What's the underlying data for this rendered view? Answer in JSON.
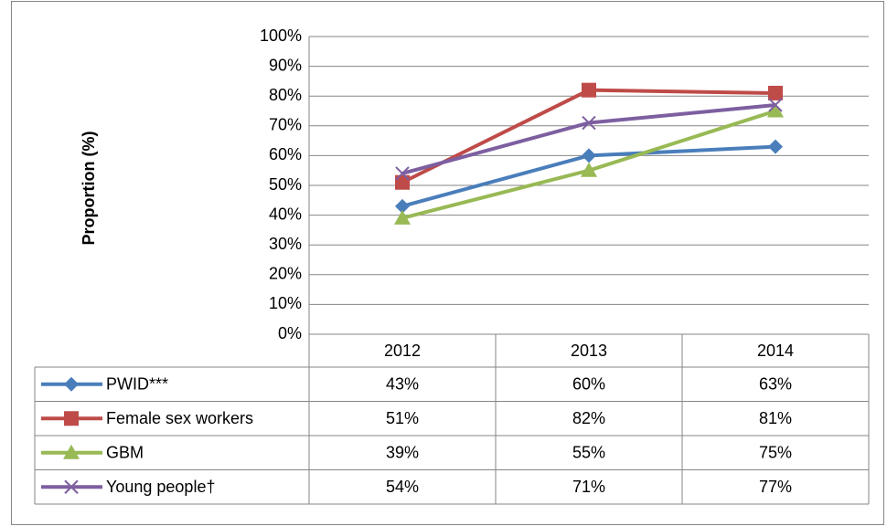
{
  "chart_data": {
    "type": "line",
    "y_label": "Proportion (%)",
    "categories": [
      "2012",
      "2013",
      "2014"
    ],
    "ylim": [
      0,
      100
    ],
    "yticks": [
      {
        "value": 0,
        "label": "0%"
      },
      {
        "value": 10,
        "label": "10%"
      },
      {
        "value": 20,
        "label": "20%"
      },
      {
        "value": 30,
        "label": "30%"
      },
      {
        "value": 40,
        "label": "40%"
      },
      {
        "value": 50,
        "label": "50%"
      },
      {
        "value": 60,
        "label": "60%"
      },
      {
        "value": 70,
        "label": "70%"
      },
      {
        "value": 80,
        "label": "80%"
      },
      {
        "value": 90,
        "label": "90%"
      },
      {
        "value": 100,
        "label": "100%"
      }
    ],
    "grid": true,
    "data_table": true,
    "series": [
      {
        "name": "PWID***",
        "color": "#4a7ebb",
        "marker": "diamond",
        "values": [
          43,
          60,
          63
        ],
        "value_labels": [
          "43%",
          "60%",
          "63%"
        ]
      },
      {
        "name": "Female sex workers",
        "color": "#be4b48",
        "marker": "square",
        "values": [
          51,
          82,
          81
        ],
        "value_labels": [
          "51%",
          "82%",
          "81%"
        ]
      },
      {
        "name": "GBM",
        "color": "#98b954",
        "marker": "triangle",
        "values": [
          39,
          55,
          75
        ],
        "value_labels": [
          "39%",
          "55%",
          "75%"
        ]
      },
      {
        "name": "Young people†",
        "color": "#7d5fa0",
        "marker": "x",
        "values": [
          54,
          71,
          77
        ],
        "value_labels": [
          "54%",
          "71%",
          "77%"
        ]
      }
    ]
  }
}
